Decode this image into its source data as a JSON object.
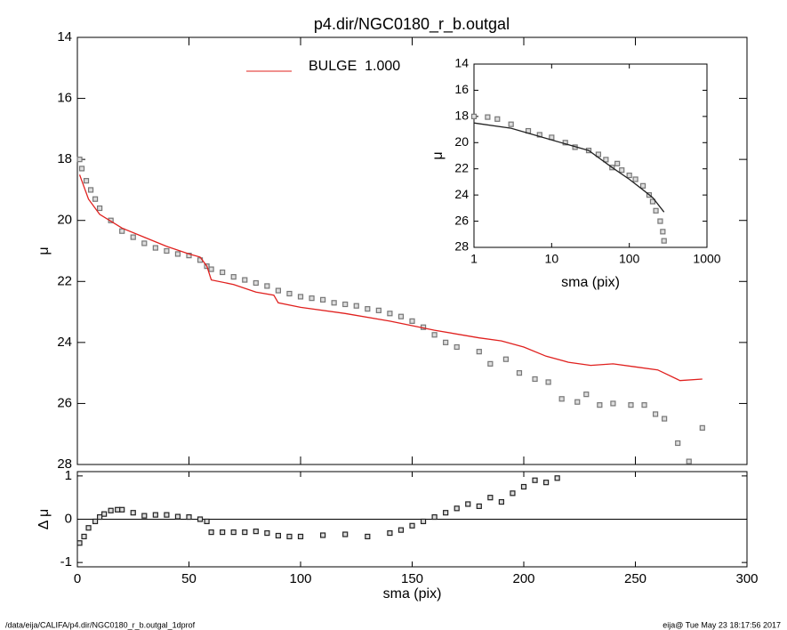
{
  "chart_data": [
    {
      "type": "scatter",
      "title": "p4.dir/NGC0180_r_b.outgal",
      "y_label": "μ",
      "xlim": [
        0,
        300
      ],
      "ylim": [
        28,
        14
      ],
      "yticks": [
        14,
        16,
        18,
        20,
        22,
        24,
        26,
        28
      ],
      "series": [
        {
          "style": "points",
          "color": "#777777",
          "x": [
            1,
            2,
            4,
            6,
            8,
            10,
            15,
            20,
            25,
            30,
            35,
            40,
            45,
            50,
            55,
            58,
            60,
            65,
            70,
            75,
            80,
            85,
            90,
            95,
            100,
            105,
            110,
            115,
            120,
            125,
            130,
            135,
            140,
            145,
            150,
            155,
            160,
            165,
            170,
            180,
            185,
            192,
            198,
            205,
            211,
            217,
            224,
            228,
            234,
            240,
            248,
            254,
            259,
            263,
            269,
            274,
            280
          ],
          "values": [
            18.0,
            18.3,
            18.7,
            19.0,
            19.3,
            19.6,
            20.0,
            20.35,
            20.55,
            20.75,
            20.9,
            21.0,
            21.1,
            21.15,
            21.3,
            21.5,
            21.6,
            21.7,
            21.85,
            21.95,
            22.05,
            22.15,
            22.3,
            22.4,
            22.5,
            22.55,
            22.6,
            22.7,
            22.75,
            22.8,
            22.9,
            22.95,
            23.05,
            23.15,
            23.3,
            23.5,
            23.75,
            24.0,
            24.15,
            24.3,
            24.7,
            24.55,
            25.0,
            25.2,
            25.3,
            25.85,
            25.95,
            25.7,
            26.05,
            26.0,
            26.05,
            26.05,
            26.35,
            26.5,
            27.3,
            27.9,
            26.8
          ]
        },
        {
          "style": "line",
          "name": "BULGE  1.000",
          "color": "#e0201e",
          "x": [
            1,
            5,
            10,
            20,
            30,
            40,
            50,
            55,
            58,
            60,
            70,
            80,
            88,
            90,
            100,
            120,
            140,
            160,
            180,
            190,
            200,
            210,
            220,
            230,
            240,
            250,
            260,
            270,
            280
          ],
          "values": [
            18.5,
            19.3,
            19.8,
            20.25,
            20.55,
            20.85,
            21.1,
            21.2,
            21.5,
            21.95,
            22.1,
            22.35,
            22.45,
            22.7,
            22.85,
            23.05,
            23.3,
            23.6,
            23.85,
            23.95,
            24.15,
            24.45,
            24.65,
            24.75,
            24.7,
            24.8,
            24.9,
            25.25,
            25.2
          ]
        }
      ]
    },
    {
      "type": "scatter",
      "x_label": "sma (pix)",
      "y_label": "Δ μ",
      "xlim": [
        0,
        300
      ],
      "xticks": [
        0,
        50,
        100,
        150,
        200,
        250,
        300
      ],
      "ylim": [
        -1.1,
        1.1
      ],
      "yticks": [
        -1,
        0,
        1
      ],
      "series": [
        {
          "style": "points",
          "color": "#222222",
          "x": [
            1,
            3,
            5,
            8,
            10,
            12,
            15,
            18,
            20,
            25,
            30,
            35,
            40,
            45,
            50,
            55,
            58,
            60,
            65,
            70,
            75,
            80,
            85,
            90,
            95,
            100,
            110,
            120,
            130,
            140,
            145,
            150,
            155,
            160,
            165,
            170,
            175,
            180,
            185,
            190,
            195,
            200,
            205,
            210,
            215
          ],
          "values": [
            -0.55,
            -0.4,
            -0.2,
            -0.05,
            0.05,
            0.12,
            0.2,
            0.22,
            0.22,
            0.15,
            0.08,
            0.1,
            0.1,
            0.06,
            0.05,
            0.0,
            -0.05,
            -0.3,
            -0.3,
            -0.3,
            -0.3,
            -0.28,
            -0.32,
            -0.38,
            -0.4,
            -0.4,
            -0.37,
            -0.35,
            -0.4,
            -0.32,
            -0.25,
            -0.15,
            -0.05,
            0.05,
            0.15,
            0.25,
            0.35,
            0.3,
            0.5,
            0.4,
            0.6,
            0.75,
            0.9,
            0.85,
            0.95
          ]
        }
      ]
    },
    {
      "type": "scatter",
      "x_label": "sma (pix)",
      "y_label": "μ",
      "xscale": "log",
      "xlim": [
        1,
        1000
      ],
      "xticks": [
        1,
        10,
        100,
        1000
      ],
      "ylim": [
        28,
        14
      ],
      "yticks": [
        14,
        16,
        18,
        20,
        22,
        24,
        26,
        28
      ],
      "series": [
        {
          "style": "points",
          "color": "#777777",
          "x": [
            1,
            1.5,
            2,
            3,
            5,
            7,
            10,
            15,
            20,
            30,
            40,
            50,
            60,
            70,
            80,
            100,
            120,
            150,
            180,
            200,
            220,
            250,
            270,
            280
          ],
          "values": [
            18.0,
            18.05,
            18.2,
            18.6,
            19.1,
            19.4,
            19.6,
            20.0,
            20.35,
            20.6,
            20.9,
            21.3,
            21.9,
            21.6,
            22.1,
            22.5,
            22.8,
            23.3,
            24.0,
            24.5,
            25.2,
            26.0,
            26.8,
            27.5
          ]
        },
        {
          "style": "line",
          "color": "#222222",
          "x": [
            1,
            3,
            10,
            30,
            60,
            100,
            150,
            200,
            280
          ],
          "values": [
            18.5,
            18.9,
            19.8,
            20.6,
            21.9,
            22.8,
            23.6,
            24.2,
            25.3
          ]
        }
      ]
    }
  ],
  "footer": {
    "left": "/data/eija/CALIFA/p4.dir/NGC0180_r_b.outgal_1dprof",
    "right": "eija@  Tue May 23 18:17:56 2017"
  }
}
